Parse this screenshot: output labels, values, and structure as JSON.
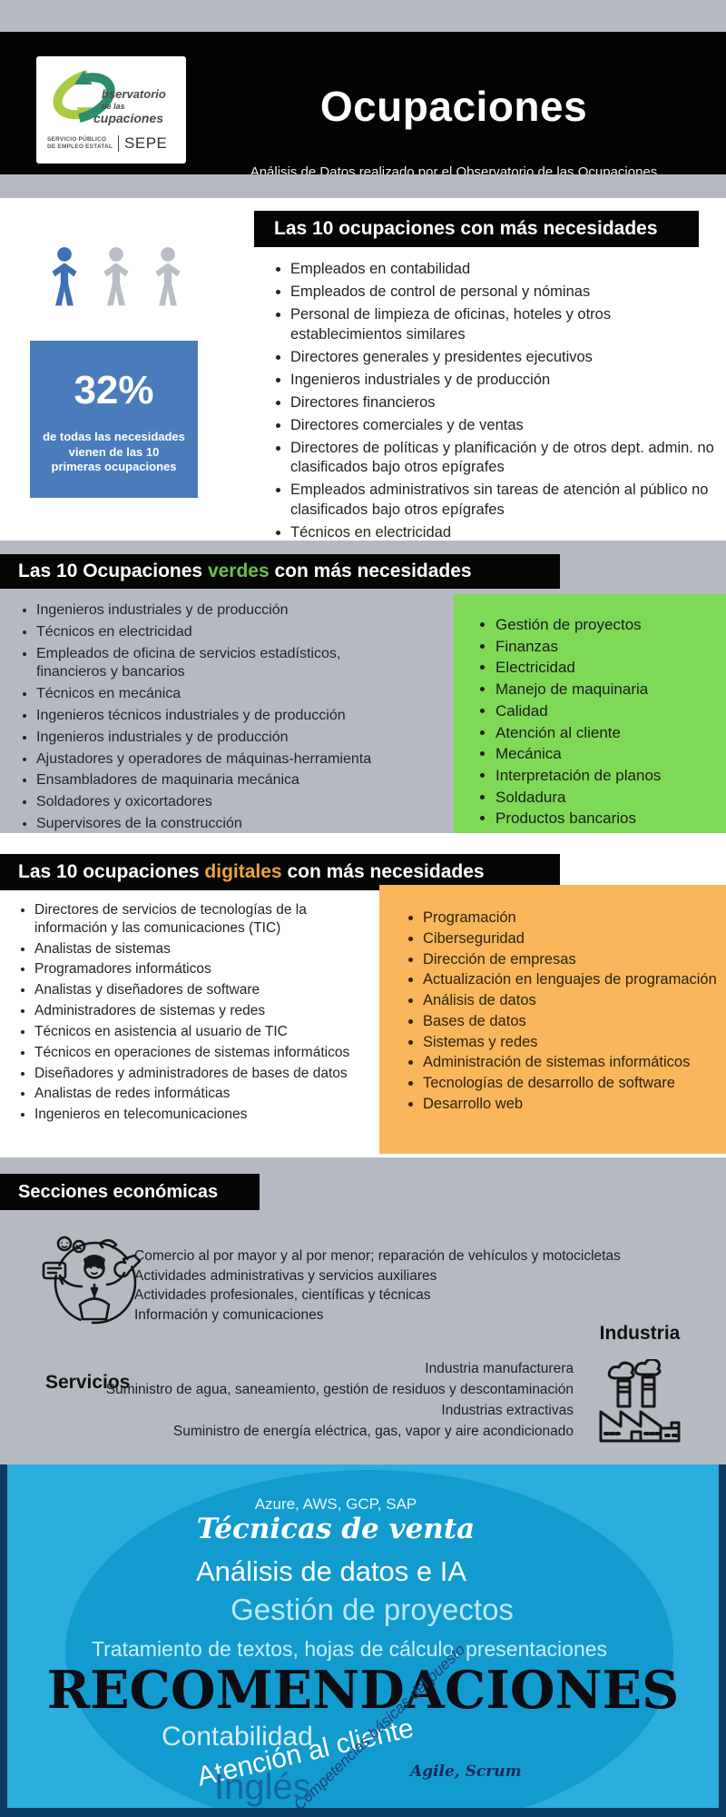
{
  "header": {
    "title": "Ocupaciones",
    "subtitle": "Análisis de Datos realizado por el Observatorio de las Ocupaciones",
    "logo": {
      "line1": "bservatorio",
      "line2": "de las",
      "line3": "cupaciones",
      "org_line1": "SERVICIO PÚBLICO",
      "org_line2": "DE EMPLEO ESTATAL",
      "acronym": "SEPE"
    }
  },
  "stat": {
    "value": "32%",
    "caption": "de todas las necesidades vienen de las 10 primeras ocupaciones"
  },
  "top_section": {
    "title": "Las 10 ocupaciones con más necesidades",
    "items": [
      "Empleados en contabilidad",
      "Empleados de control de personal y nóminas",
      "Personal de limpieza de oficinas, hoteles y otros establecimientos similares",
      "Directores generales y presidentes ejecutivos",
      "Ingenieros industriales y de producción",
      "Directores financieros",
      "Directores comerciales y de ventas",
      "Directores de políticas y planificación y de otros dept. admin. no clasificados bajo otros epígrafes",
      "Empleados administrativos sin tareas de atención al público no clasificados bajo otros epígrafes",
      "Técnicos en electricidad"
    ]
  },
  "green_section": {
    "title_pre": "Las 10 Ocupaciones ",
    "title_highlight": "verdes",
    "title_post": " con más necesidades",
    "occupations": [
      "Ingenieros industriales y de producción",
      "Técnicos en electricidad",
      "Empleados de oficina de servicios estadísticos, financieros y bancarios",
      "Técnicos en mecánica",
      "Ingenieros técnicos industriales y de producción",
      "Ingenieros industriales y de producción",
      "Ajustadores y operadores de máquinas-herramienta",
      "Ensambladores de maquinaria mecánica",
      "Soldadores y oxicortadores",
      "Supervisores de la construcción"
    ],
    "skills": [
      "Gestión de proyectos",
      "Finanzas",
      "Electricidad",
      "Manejo de maquinaria",
      "Calidad",
      "Atención al cliente",
      "Mecánica",
      "Interpretación de planos",
      "Soldadura",
      "Productos bancarios"
    ]
  },
  "digital_section": {
    "title_pre": "Las 10 ocupaciones ",
    "title_highlight": "digitales",
    "title_post": " con más necesidades",
    "occupations": [
      "Directores de servicios de tecnologías de la información y las comunicaciones (TIC)",
      "Analistas de sistemas",
      "Programadores informáticos",
      "Analistas y diseñadores de software",
      "Administradores de sistemas y redes",
      "Técnicos en asistencia al usuario de TIC",
      "Técnicos en operaciones de sistemas informáticos",
      "Diseñadores y administradores de bases de datos",
      "Analistas de redes informáticas",
      "Ingenieros en telecomunicaciones"
    ],
    "skills": [
      "Programación",
      "Ciberseguridad",
      "Dirección de empresas",
      "Actualización en lenguajes de programación",
      "Análisis de datos",
      "Bases de datos",
      "Sistemas y redes",
      "Administración de sistemas informáticos",
      "Tecnologías de desarrollo de software",
      "Desarrollo web"
    ]
  },
  "economic_section": {
    "title": "Secciones económicas",
    "services": {
      "label": "Servicios",
      "items": [
        "Comercio al por mayor y al por menor; reparación de vehículos y motocicletas",
        "Actividades administrativas y servicios auxiliares",
        "Actividades profesionales, científicas y técnicas",
        "Información y comunicaciones"
      ]
    },
    "industry": {
      "label": "Industria",
      "items": [
        "Industria manufacturera",
        "Suministro de agua, saneamiento, gestión de residuos y descontaminación",
        "Industrias extractivas",
        "Suministro de energía eléctrica, gas, vapor y aire acondicionado"
      ]
    }
  },
  "recommendations": {
    "tools": "Azure, AWS, GCP, SAP",
    "sales": "Técnicas de venta",
    "data_ai": "Análisis de datos e IA",
    "projects": "Gestión de proyectos",
    "office": "Tratamiento de textos, hojas de cálculo, presentaciones",
    "title": "RECOMENDACIONES",
    "accounting": "Contabilidad",
    "customer": "Atención al cliente",
    "basics": "Competencias básicas del puesto",
    "agile": "Agile, Scrum",
    "english": "Inglés"
  },
  "colors": {
    "gray": "#b5bac2",
    "stat-blue": "#4a7cbb",
    "person-blue": "#3f6fb4",
    "person-gray": "#b9bec6",
    "green": "#7ed957",
    "green-accent": "#6cc04a",
    "orange": "#f9b65a",
    "orange-accent": "#efa23d",
    "panel": "#2badde",
    "ellipse": "#129bce",
    "navy": "#0a3c64",
    "ingles": "#1566a4"
  }
}
